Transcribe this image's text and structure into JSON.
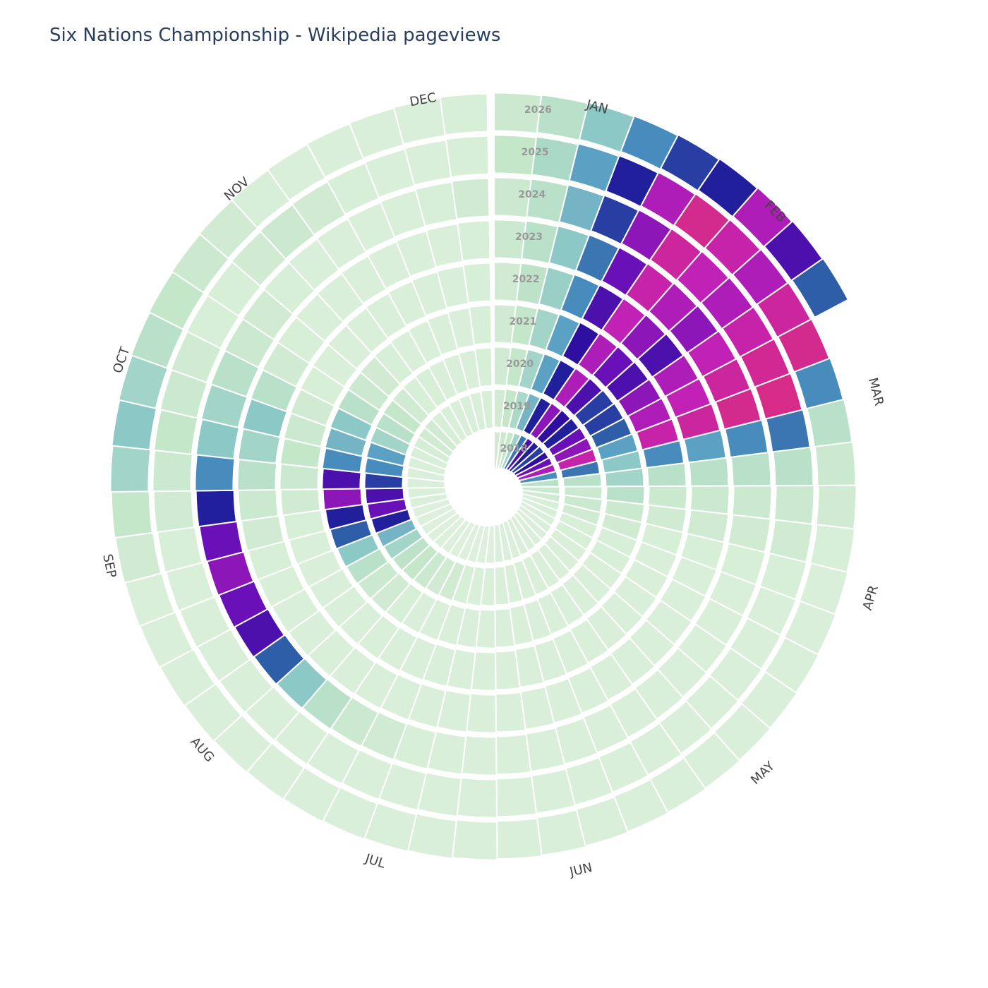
{
  "chart_data": {
    "type": "polar-spiral-heatmap",
    "title": "Six Nations Championship - Wikipedia pageviews",
    "month_labels": [
      "JAN",
      "FEB",
      "MAR",
      "APR",
      "MAY",
      "JUN",
      "JUL",
      "AUG",
      "SEP",
      "OCT",
      "NOV",
      "DEC"
    ],
    "zlim": [
      0,
      100
    ],
    "colorscale": [
      "#e8f5e4",
      "#c4e6c8",
      "#8cc8c6",
      "#4f97c2",
      "#2e5ea8",
      "#1f0f99",
      "#6a10b8",
      "#c020b8",
      "#e03070"
    ],
    "series": [
      {
        "name": "2018",
        "values": [
          8,
          10,
          12,
          20,
          45,
          70,
          60,
          55,
          65,
          75,
          85,
          40,
          15,
          10,
          8,
          6,
          6,
          5,
          5,
          5,
          5,
          5,
          5,
          5,
          5,
          5,
          4,
          4,
          4,
          4,
          4,
          4,
          4,
          4,
          4,
          4,
          4,
          5,
          5,
          5,
          5,
          5,
          6,
          7,
          8,
          8,
          6,
          5,
          5,
          5,
          5,
          6
        ]
      },
      {
        "name": "2019",
        "values": [
          8,
          12,
          18,
          30,
          60,
          80,
          65,
          60,
          75,
          80,
          90,
          45,
          15,
          10,
          10,
          8,
          6,
          6,
          5,
          5,
          5,
          5,
          5,
          5,
          5,
          5,
          5,
          5,
          6,
          8,
          8,
          10,
          12,
          14,
          20,
          30,
          60,
          75,
          70,
          55,
          40,
          35,
          20,
          15,
          12,
          8,
          6,
          6,
          5,
          5,
          5,
          6
        ]
      },
      {
        "name": "2020",
        "values": [
          8,
          12,
          20,
          35,
          60,
          85,
          70,
          55,
          55,
          50,
          35,
          25,
          20,
          15,
          10,
          8,
          6,
          6,
          5,
          5,
          5,
          5,
          5,
          5,
          5,
          5,
          5,
          5,
          5,
          5,
          5,
          6,
          8,
          10,
          15,
          25,
          50,
          60,
          80,
          70,
          40,
          30,
          25,
          15,
          10,
          8,
          6,
          5,
          5,
          5,
          5,
          6
        ]
      },
      {
        "name": "2021",
        "values": [
          8,
          12,
          20,
          35,
          65,
          85,
          75,
          70,
          80,
          85,
          90,
          40,
          15,
          10,
          8,
          6,
          5,
          5,
          5,
          5,
          5,
          5,
          5,
          5,
          5,
          5,
          5,
          5,
          5,
          5,
          5,
          5,
          5,
          5,
          5,
          5,
          5,
          6,
          8,
          10,
          12,
          10,
          8,
          6,
          5,
          5,
          5,
          5,
          5,
          5,
          5,
          6
        ]
      },
      {
        "name": "2022",
        "values": [
          8,
          14,
          22,
          40,
          70,
          88,
          80,
          70,
          85,
          88,
          92,
          35,
          15,
          10,
          8,
          6,
          5,
          5,
          5,
          5,
          5,
          5,
          5,
          5,
          5,
          5,
          5,
          5,
          5,
          5,
          5,
          5,
          5,
          5,
          5,
          5,
          6,
          8,
          10,
          15,
          20,
          25,
          15,
          8,
          6,
          5,
          5,
          5,
          5,
          5,
          5,
          6
        ]
      },
      {
        "name": "2023",
        "values": [
          10,
          15,
          25,
          45,
          75,
          90,
          85,
          80,
          88,
          92,
          95,
          40,
          15,
          10,
          8,
          6,
          5,
          5,
          5,
          5,
          5,
          5,
          5,
          5,
          5,
          5,
          5,
          5,
          6,
          8,
          10,
          15,
          25,
          50,
          70,
          75,
          80,
          75,
          60,
          40,
          25,
          20,
          15,
          10,
          8,
          6,
          5,
          5,
          5,
          5,
          6,
          8
        ]
      },
      {
        "name": "2024",
        "values": [
          10,
          15,
          30,
          55,
          80,
          92,
          88,
          85,
          90,
          94,
          96,
          45,
          15,
          10,
          8,
          6,
          5,
          5,
          5,
          5,
          5,
          5,
          5,
          5,
          5,
          5,
          5,
          5,
          5,
          5,
          5,
          5,
          5,
          5,
          5,
          5,
          5,
          6,
          8,
          10,
          12,
          10,
          8,
          6,
          6,
          8,
          10,
          8,
          6,
          5,
          5,
          6
        ]
      },
      {
        "name": "2025",
        "values": [
          12,
          18,
          35,
          60,
          85,
          95,
          90,
          85,
          92,
          95,
          40,
          15,
          10,
          8,
          6,
          5,
          5,
          5,
          5,
          5,
          5,
          5,
          5,
          5,
          5,
          5,
          5,
          5,
          5,
          5,
          5,
          5,
          5,
          5,
          5,
          5,
          5,
          8,
          12,
          20,
          25,
          20,
          15,
          12,
          10,
          8,
          6,
          5,
          5,
          5,
          5,
          6
        ]
      },
      {
        "name": "2026",
        "values": [
          10,
          15,
          25,
          40,
          55,
          60,
          85,
          70,
          50
        ]
      }
    ]
  }
}
